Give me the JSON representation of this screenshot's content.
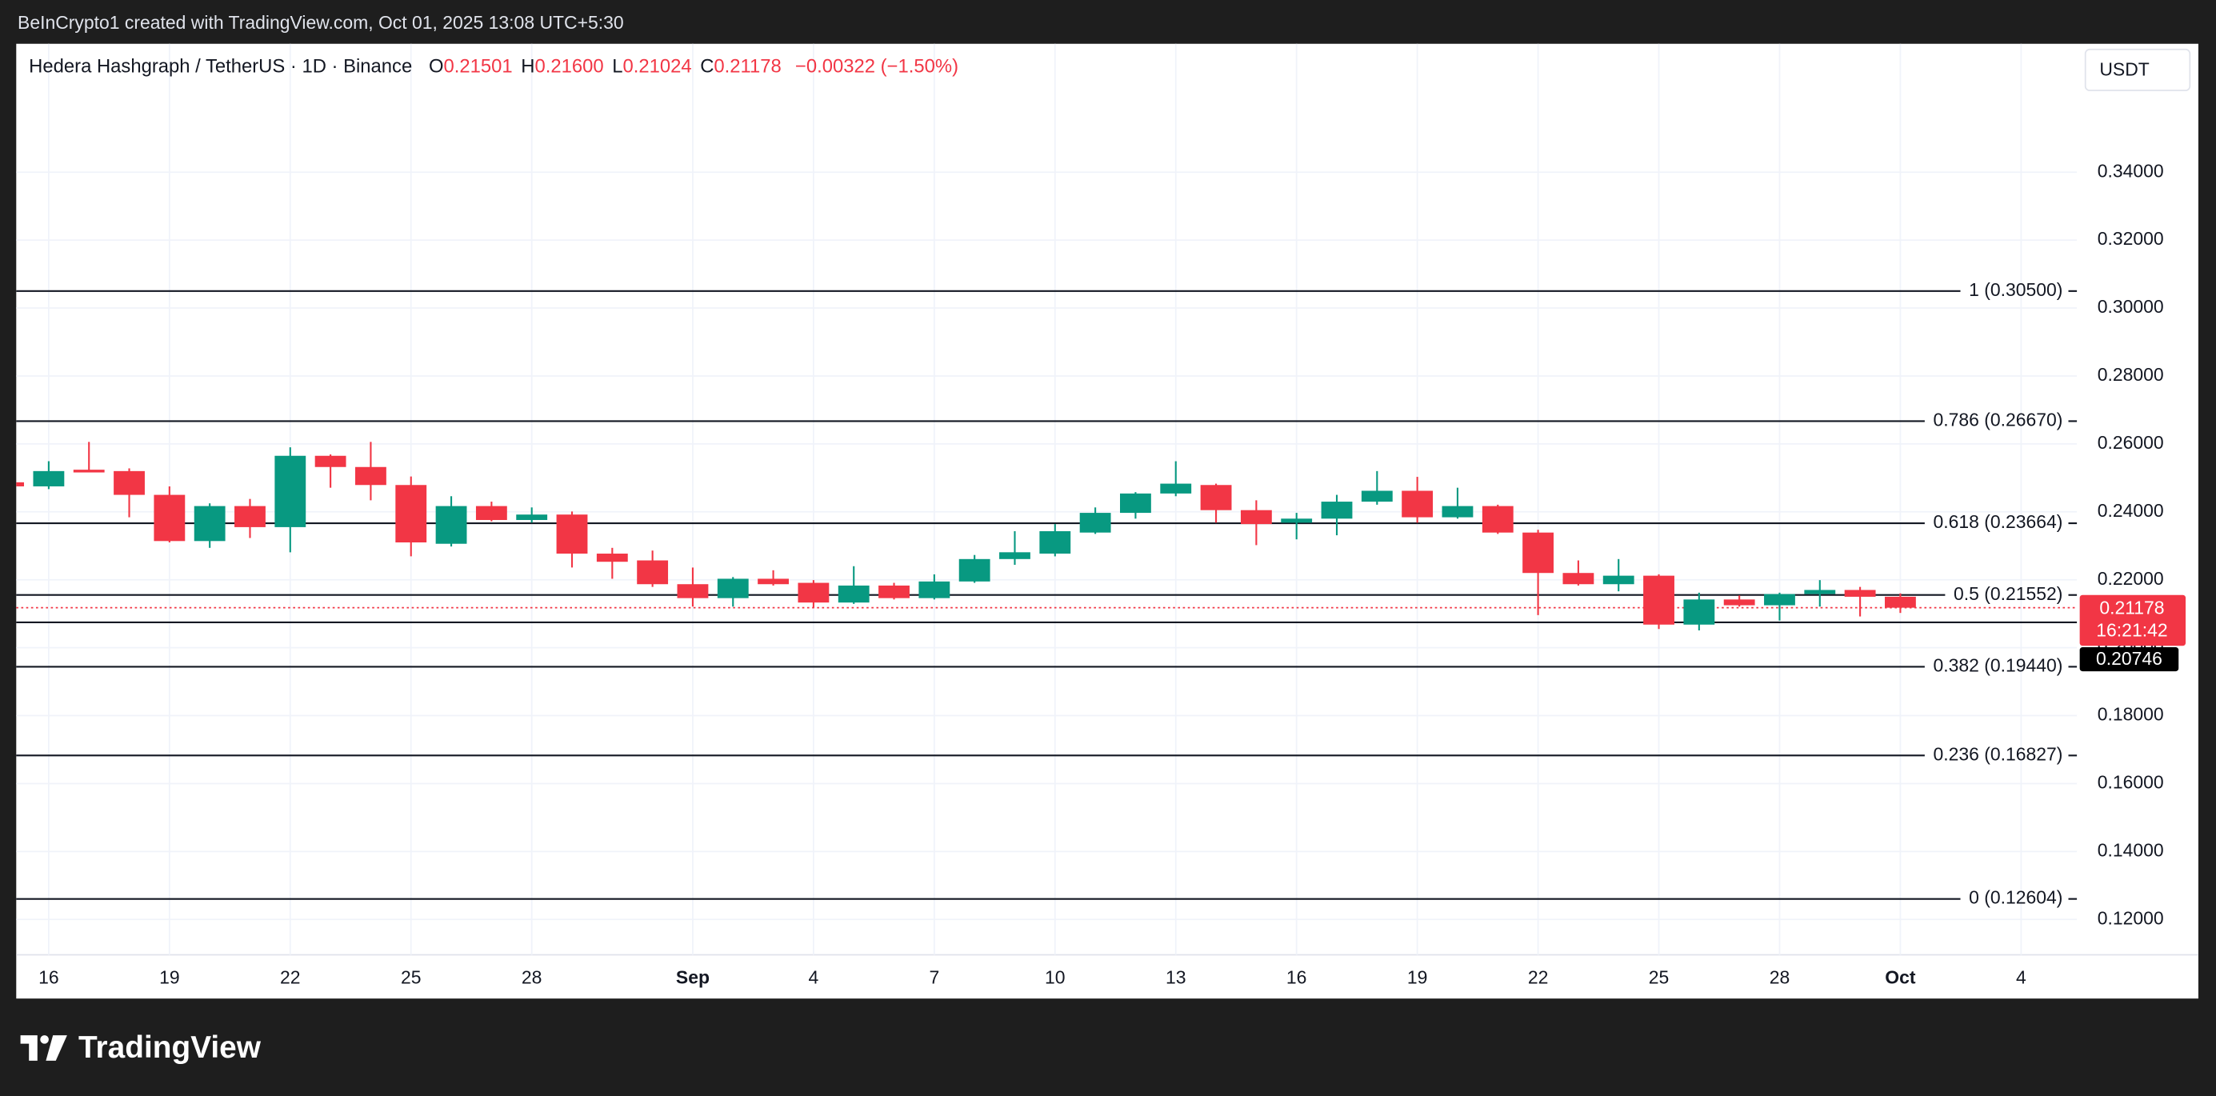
{
  "chart_data": {
    "type": "candlestick",
    "watermark": "BeInCrypto1 created with TradingView.com, Oct 01, 2025 13:08 UTC+5:30",
    "legend": {
      "title": "Hedera Hashgraph / TetherUS · 1D · Binance",
      "items": [
        {
          "key": "O",
          "value": "0.21501"
        },
        {
          "key": "H",
          "value": "0.21600"
        },
        {
          "key": "L",
          "value": "0.21024"
        },
        {
          "key": "C",
          "value": "0.21178"
        }
      ],
      "change": "−0.00322 (−1.50%)"
    },
    "currency": "USDT",
    "brand": "TradingView",
    "up_color": "#089981",
    "down_color": "#f23645",
    "grid": true,
    "categories": [
      null,
      "16",
      null,
      null,
      "19",
      null,
      null,
      "22",
      null,
      null,
      "25",
      null,
      null,
      "28",
      null,
      null,
      null,
      "Sep",
      null,
      null,
      "4",
      null,
      null,
      "7",
      null,
      null,
      "10",
      null,
      null,
      "13",
      null,
      null,
      "16",
      null,
      null,
      "19",
      null,
      null,
      "22",
      null,
      null,
      "25",
      null,
      null,
      "28",
      null,
      null,
      "Oct",
      null,
      null,
      "4"
    ],
    "open": [
      0.2487,
      0.2475,
      0.2524,
      0.252,
      0.245,
      0.2314,
      0.2417,
      0.2355,
      0.2565,
      0.2532,
      0.2479,
      0.2306,
      0.2417,
      0.2376,
      0.2392,
      0.2277,
      0.2257,
      0.2187,
      0.2146,
      0.2203,
      0.2191,
      0.2133,
      0.2183,
      0.2146,
      0.2195,
      0.2261,
      0.2277,
      0.2339,
      0.2397,
      0.2454,
      0.2479,
      0.2405,
      0.2368,
      0.238,
      0.243,
      0.2462,
      0.2384,
      0.2417,
      0.2339,
      0.222,
      0.2187,
      0.2212,
      0.2068,
      0.2142,
      0.2125,
      0.2158,
      0.217,
      0.21501,
      null,
      null,
      null
    ],
    "high": [
      0.249,
      0.2549,
      0.2606,
      0.2528,
      0.2475,
      0.2425,
      0.2438,
      0.259,
      0.2569,
      0.2606,
      0.2504,
      0.2446,
      0.243,
      0.2413,
      0.2401,
      0.2294,
      0.2286,
      0.2236,
      0.2208,
      0.2228,
      0.2199,
      0.224,
      0.2191,
      0.2216,
      0.2273,
      0.2343,
      0.2364,
      0.2413,
      0.2458,
      0.2549,
      0.2483,
      0.2434,
      0.2397,
      0.245,
      0.252,
      0.2503,
      0.2471,
      0.2421,
      0.2347,
      0.2257,
      0.2261,
      0.2216,
      0.2162,
      0.2154,
      0.2162,
      0.2199,
      0.2179,
      0.216,
      null,
      null,
      null
    ],
    "low": [
      0.247,
      0.2467,
      0.2516,
      0.2384,
      0.231,
      0.2294,
      0.2323,
      0.2281,
      0.2471,
      0.2434,
      0.2269,
      0.2298,
      0.2372,
      0.2368,
      0.2236,
      0.2203,
      0.2179,
      0.2121,
      0.2121,
      0.2183,
      0.2117,
      0.2129,
      0.2142,
      0.2142,
      0.2191,
      0.2244,
      0.2269,
      0.2335,
      0.238,
      0.2446,
      0.2368,
      0.2302,
      0.2319,
      0.2331,
      0.2421,
      0.2368,
      0.238,
      0.2335,
      0.2096,
      0.2183,
      0.2166,
      0.2055,
      0.2051,
      0.2121,
      0.208,
      0.2121,
      0.2092,
      0.21024,
      null,
      null,
      null
    ],
    "close": [
      0.2475,
      0.252,
      0.2516,
      0.245,
      0.2314,
      0.2417,
      0.2355,
      0.2565,
      0.2532,
      0.2479,
      0.231,
      0.2417,
      0.2376,
      0.2392,
      0.2277,
      0.2253,
      0.2187,
      0.2146,
      0.2203,
      0.2187,
      0.2133,
      0.2183,
      0.2146,
      0.2195,
      0.2261,
      0.2281,
      0.2343,
      0.2397,
      0.2454,
      0.2483,
      0.2405,
      0.2364,
      0.238,
      0.243,
      0.2462,
      0.2384,
      0.2417,
      0.2339,
      0.222,
      0.2187,
      0.2212,
      0.2068,
      0.2142,
      0.2125,
      0.2158,
      0.217,
      0.215,
      0.21178,
      null,
      null,
      null
    ],
    "ylim": [
      0.1096,
      0.3778
    ],
    "yticks": [
      {
        "value": 0.12,
        "label": "0.12000"
      },
      {
        "value": 0.14,
        "label": "0.14000"
      },
      {
        "value": 0.16,
        "label": "0.16000"
      },
      {
        "value": 0.18,
        "label": "0.18000"
      },
      {
        "value": 0.2,
        "label": "0.20000"
      },
      {
        "value": 0.22,
        "label": "0.22000"
      },
      {
        "value": 0.24,
        "label": "0.24000"
      },
      {
        "value": 0.26,
        "label": "0.26000"
      },
      {
        "value": 0.28,
        "label": "0.28000"
      },
      {
        "value": 0.3,
        "label": "0.30000"
      },
      {
        "value": 0.32,
        "label": "0.32000"
      },
      {
        "value": 0.34,
        "label": "0.34000"
      }
    ],
    "fib_levels": [
      {
        "value": 0.305,
        "label": "1 (0.30500)"
      },
      {
        "value": 0.2667,
        "label": "0.786 (0.26670)"
      },
      {
        "value": 0.23664,
        "label": "0.618 (0.23664)"
      },
      {
        "value": 0.21552,
        "label": "0.5 (0.21552)"
      },
      {
        "value": 0.1944,
        "label": "0.382 (0.19440)"
      },
      {
        "value": 0.16827,
        "label": "0.236 (0.16827)"
      },
      {
        "value": 0.12604,
        "label": "0 (0.12604)"
      }
    ],
    "last_price": {
      "value": 0.21178,
      "label": "0.21178"
    },
    "countdown": "16:21:42",
    "support_line": {
      "value": 0.20746,
      "label": "0.20746"
    }
  }
}
